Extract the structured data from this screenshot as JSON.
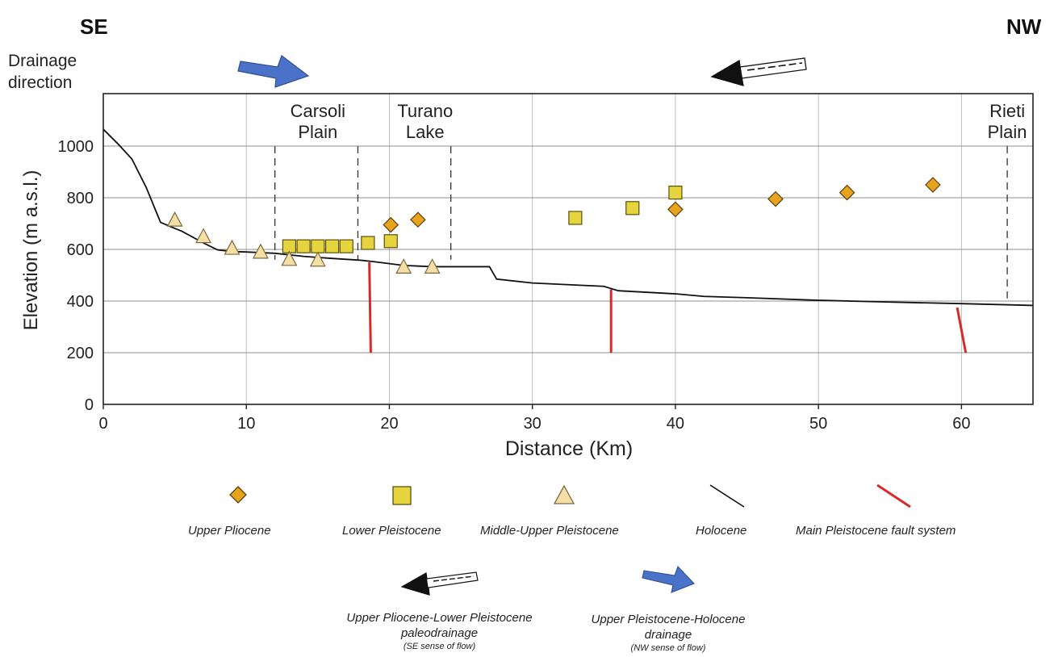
{
  "header": {
    "left_direction": "SE",
    "right_direction": "NW",
    "drainage_label": [
      "Drainage",
      "direction"
    ]
  },
  "legend": {
    "upper_pliocene": "Upper Pliocene",
    "lower_pleistocene": "Lower Pleistocene",
    "middle_upper_pleistocene": "Middle-Upper Pleistocene",
    "holocene": "Holocene",
    "fault_system": "Main Pleistocene fault system",
    "paleodrainage_line1": "Upper Pliocene-Lower Pleistocene",
    "paleodrainage_line2": "paleodrainage",
    "paleodrainage_sub": "(SE sense of flow)",
    "drainage_line1": "Upper Pleistocene-Holocene",
    "drainage_line2": "drainage",
    "drainage_sub": "(NW sense of flow)"
  },
  "colors": {
    "upper_pliocene": "#E8A31C",
    "lower_pleistocene": "#E6D43E",
    "middle_upper_pleistocene": "#F6DFA6",
    "fault": "#D72A2A",
    "blue_arrow": "#4A72C8",
    "grid": "#bdbdbd"
  },
  "chart_data": {
    "type": "scatter",
    "xlabel": "Distance (Km)",
    "ylabel": "Elevation (m a.s.l.)",
    "xlim": [
      0,
      65
    ],
    "ylim": [
      0,
      1000
    ],
    "xticks": [
      0,
      10,
      20,
      30,
      40,
      50,
      60
    ],
    "yticks": [
      0,
      200,
      400,
      600,
      800,
      1000
    ],
    "grid": true,
    "places": [
      {
        "lines": [
          "Carsoli",
          "Plain"
        ],
        "x": 15,
        "bounds": [
          12,
          17.8
        ]
      },
      {
        "lines": [
          "Turano",
          "Lake"
        ],
        "x": 22.5,
        "bounds": [
          24.3
        ]
      },
      {
        "lines": [
          "Rieti",
          "Plain"
        ],
        "x": 63.2,
        "bounds": [
          63.2
        ]
      }
    ],
    "series": [
      {
        "name": "Upper Pliocene",
        "marker": "diamond",
        "points": [
          [
            20.1,
            695
          ],
          [
            22,
            715
          ],
          [
            40,
            755
          ],
          [
            47,
            795
          ],
          [
            52,
            820
          ],
          [
            58,
            850
          ]
        ]
      },
      {
        "name": "Lower Pleistocene",
        "marker": "square",
        "points": [
          [
            13,
            612
          ],
          [
            14,
            612
          ],
          [
            15,
            612
          ],
          [
            16,
            612
          ],
          [
            17,
            612
          ],
          [
            18.5,
            625
          ],
          [
            20.1,
            632
          ],
          [
            33,
            722
          ],
          [
            37,
            760
          ],
          [
            40,
            820
          ]
        ]
      },
      {
        "name": "Middle-Upper Pleistocene",
        "marker": "triangle",
        "points": [
          [
            5,
            712
          ],
          [
            7,
            648
          ],
          [
            9,
            603
          ],
          [
            11,
            588
          ],
          [
            13,
            560
          ],
          [
            15,
            557
          ],
          [
            21,
            530
          ],
          [
            23,
            530
          ]
        ]
      },
      {
        "name": "Holocene",
        "marker": "line",
        "points": [
          [
            0,
            1065
          ],
          [
            1,
            1010
          ],
          [
            2,
            950
          ],
          [
            3,
            840
          ],
          [
            4,
            705
          ],
          [
            4.7,
            688
          ],
          [
            5.5,
            670
          ],
          [
            7,
            625
          ],
          [
            8,
            598
          ],
          [
            9,
            592
          ],
          [
            10,
            590
          ],
          [
            12,
            585
          ],
          [
            14,
            573
          ],
          [
            16,
            565
          ],
          [
            18,
            558
          ],
          [
            19,
            552
          ],
          [
            20,
            545
          ],
          [
            21,
            538
          ],
          [
            23,
            533
          ],
          [
            27,
            533
          ],
          [
            27.5,
            485
          ],
          [
            30,
            470
          ],
          [
            33,
            462
          ],
          [
            35,
            457
          ],
          [
            36,
            440
          ],
          [
            40,
            428
          ],
          [
            42,
            418
          ],
          [
            45,
            413
          ],
          [
            50,
            403
          ],
          [
            55,
            396
          ],
          [
            60,
            390
          ],
          [
            65,
            383
          ]
        ]
      },
      {
        "name": "Main Pleistocene fault system",
        "marker": "fault",
        "segments": [
          [
            [
              18.6,
              550
            ],
            [
              18.7,
              200
            ]
          ],
          [
            [
              35.5,
              445
            ],
            [
              35.5,
              200
            ]
          ],
          [
            [
              59.7,
              375
            ],
            [
              60.3,
              200
            ]
          ]
        ]
      }
    ]
  }
}
